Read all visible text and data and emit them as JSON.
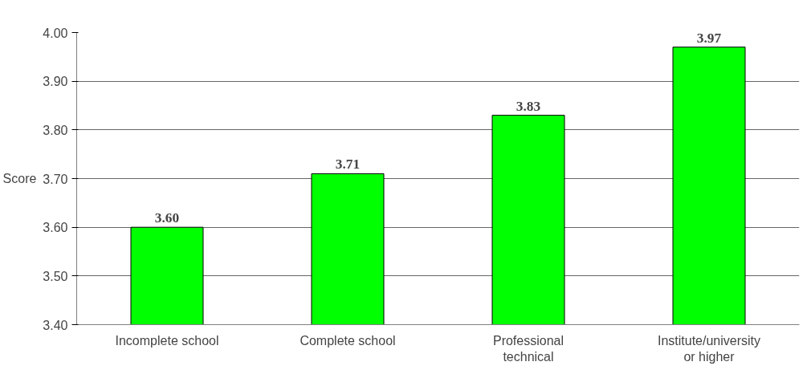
{
  "chart_data": {
    "type": "bar",
    "categories": [
      "Incomplete school",
      "Complete school",
      "Professional technical",
      "Institute/university or higher"
    ],
    "values": [
      3.6,
      3.71,
      3.83,
      3.97
    ],
    "value_labels": [
      "3.60",
      "3.71",
      "3.83",
      "3.97"
    ],
    "color": "#00ff00",
    "ylabel": "Score",
    "ylim": [
      3.4,
      4.0
    ],
    "yticks": [
      {
        "value": 3.4,
        "label": "3.40"
      },
      {
        "value": 3.5,
        "label": "3.50"
      },
      {
        "value": 3.6,
        "label": "3.60"
      },
      {
        "value": 3.7,
        "label": "3.70"
      },
      {
        "value": 3.8,
        "label": "3.80"
      },
      {
        "value": 3.9,
        "label": "3.90"
      },
      {
        "value": 4.0,
        "label": "4.00"
      }
    ],
    "grid": "y"
  }
}
